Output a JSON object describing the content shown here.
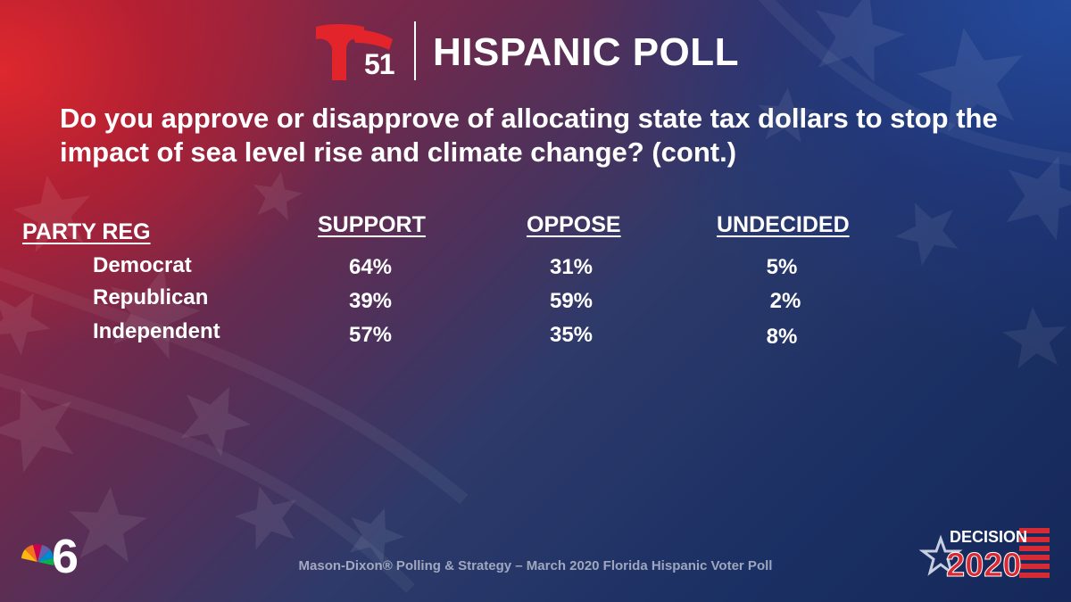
{
  "brand": {
    "station_number": "51",
    "title": "HISPANIC POLL"
  },
  "question": "Do you approve or disapprove of allocating state tax dollars to stop the impact of sea level rise and climate change?  (cont.)",
  "table": {
    "header_label": "PARTY REG",
    "columns": [
      "SUPPORT",
      "OPPOSE",
      "UNDECIDED"
    ],
    "rows": [
      {
        "label": "Democrat",
        "values": [
          "64%",
          "31%",
          "5%"
        ]
      },
      {
        "label": "Republican",
        "values": [
          "39%",
          "59%",
          "2%"
        ]
      },
      {
        "label": "Independent",
        "values": [
          "57%",
          "35%",
          "8%"
        ]
      }
    ]
  },
  "footer": "Mason-Dixon® Polling & Strategy – March 2020 Florida Hispanic Voter Poll",
  "badges": {
    "decision_word": "DECISION",
    "decision_year": "2020",
    "nbc_channel": "6"
  },
  "colors": {
    "telemundo_red": "#e3242b",
    "accent_blue": "#1e3c8c",
    "accent_red": "#d62b35"
  }
}
